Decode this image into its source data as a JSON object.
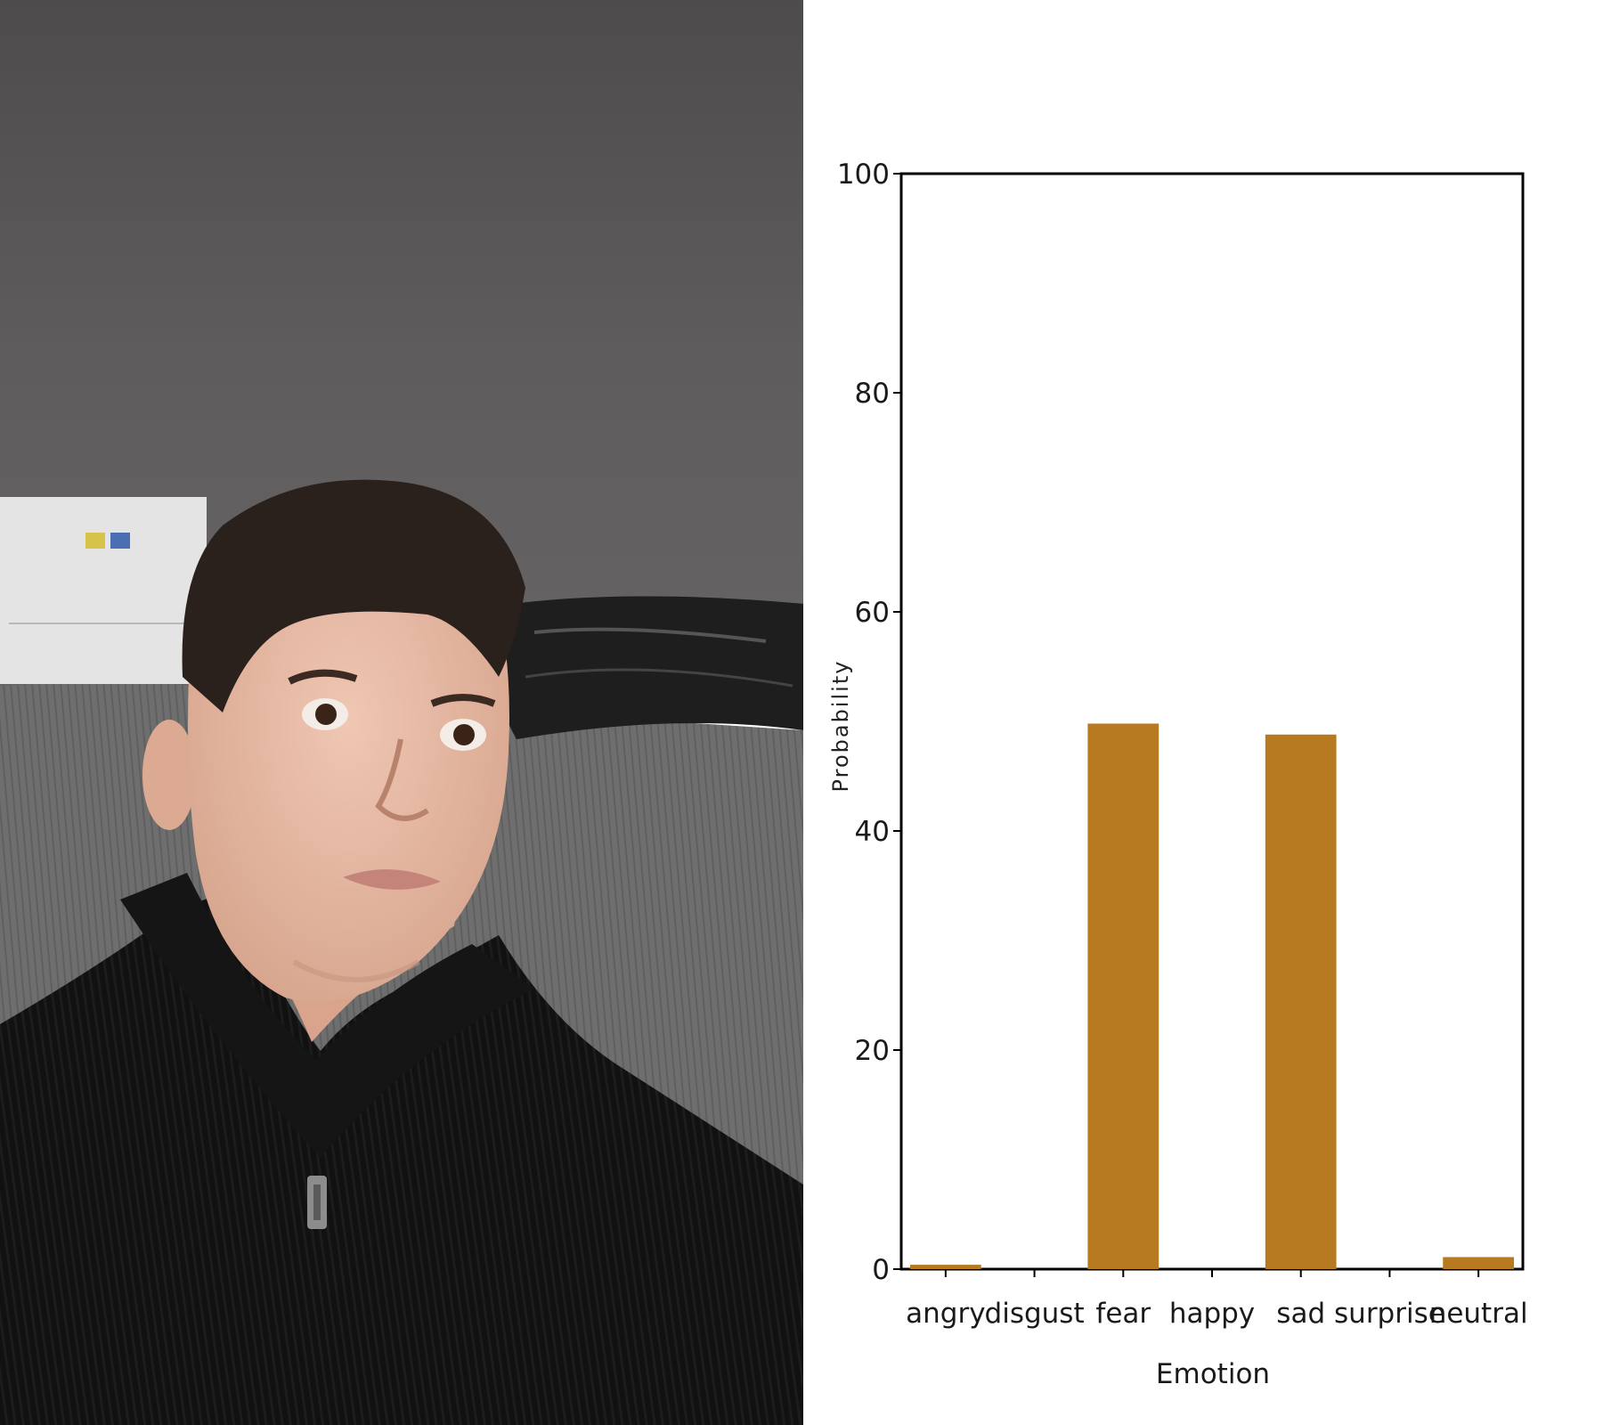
{
  "photo": {
    "description_icon": "person-photo",
    "colors": {
      "wall": "#5a5858",
      "sofa": "#6f6f6f",
      "sweater": "#0f0f0f",
      "skin": "#e6b9a4",
      "hair": "#2a211d",
      "box": "#e4e4e4"
    }
  },
  "chart_data": {
    "type": "bar",
    "categories": [
      "angry",
      "disgust",
      "fear",
      "happy",
      "sad",
      "surprise",
      "neutral"
    ],
    "values": [
      0.4,
      0.0,
      49.8,
      0.0,
      48.8,
      0.0,
      1.1
    ],
    "xlabel": "Emotion",
    "ylabel": "Probability",
    "ylim": [
      0,
      100
    ],
    "yticks": [
      0,
      20,
      40,
      60,
      80,
      100
    ],
    "bar_color": "#b87a21",
    "grid": false
  }
}
